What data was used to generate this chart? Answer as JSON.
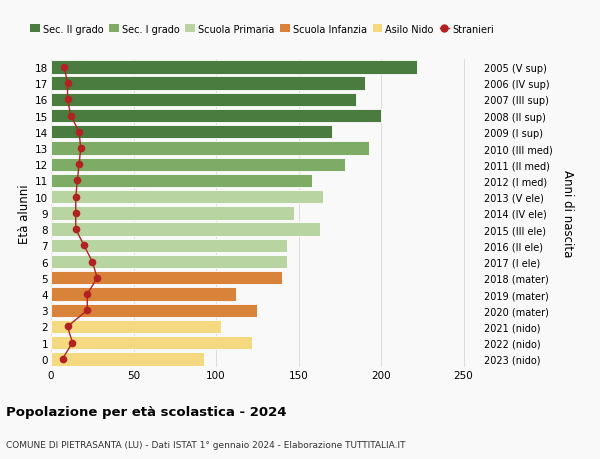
{
  "ages": [
    18,
    17,
    16,
    15,
    14,
    13,
    12,
    11,
    10,
    9,
    8,
    7,
    6,
    5,
    4,
    3,
    2,
    1,
    0
  ],
  "values": [
    222,
    190,
    185,
    200,
    170,
    193,
    178,
    158,
    165,
    147,
    163,
    143,
    143,
    140,
    112,
    125,
    103,
    122,
    93
  ],
  "stranieri": [
    8,
    10,
    10,
    12,
    17,
    18,
    17,
    16,
    15,
    15,
    15,
    20,
    25,
    28,
    22,
    22,
    10,
    13,
    7
  ],
  "right_labels": [
    "2005 (V sup)",
    "2006 (IV sup)",
    "2007 (III sup)",
    "2008 (II sup)",
    "2009 (I sup)",
    "2010 (III med)",
    "2011 (II med)",
    "2012 (I med)",
    "2013 (V ele)",
    "2014 (IV ele)",
    "2015 (III ele)",
    "2016 (II ele)",
    "2017 (I ele)",
    "2018 (mater)",
    "2019 (mater)",
    "2020 (mater)",
    "2021 (nido)",
    "2022 (nido)",
    "2023 (nido)"
  ],
  "bar_colors": [
    "#4a7c40",
    "#4a7c40",
    "#4a7c40",
    "#4a7c40",
    "#4a7c40",
    "#7eab65",
    "#7eab65",
    "#7eab65",
    "#b8d4a0",
    "#b8d4a0",
    "#b8d4a0",
    "#b8d4a0",
    "#b8d4a0",
    "#d9833a",
    "#d9833a",
    "#d9833a",
    "#f5d980",
    "#f5d980",
    "#f5d980"
  ],
  "legend_labels": [
    "Sec. II grado",
    "Sec. I grado",
    "Scuola Primaria",
    "Scuola Infanzia",
    "Asilo Nido",
    "Stranieri"
  ],
  "legend_colors": [
    "#4a7c40",
    "#7eab65",
    "#b8d4a0",
    "#d9833a",
    "#f5d980",
    "#b22222"
  ],
  "stranieri_color": "#b22222",
  "ylabel": "Età alunni",
  "right_ylabel": "Anni di nascita",
  "title": "Popolazione per età scolastica - 2024",
  "subtitle": "COMUNE DI PIETRASANTA (LU) - Dati ISTAT 1° gennaio 2024 - Elaborazione TUTTITALIA.IT",
  "xlim": [
    0,
    260
  ],
  "xticks": [
    0,
    50,
    100,
    150,
    200,
    250
  ],
  "background_color": "#f9f9f9",
  "grid_color": "#dddddd"
}
